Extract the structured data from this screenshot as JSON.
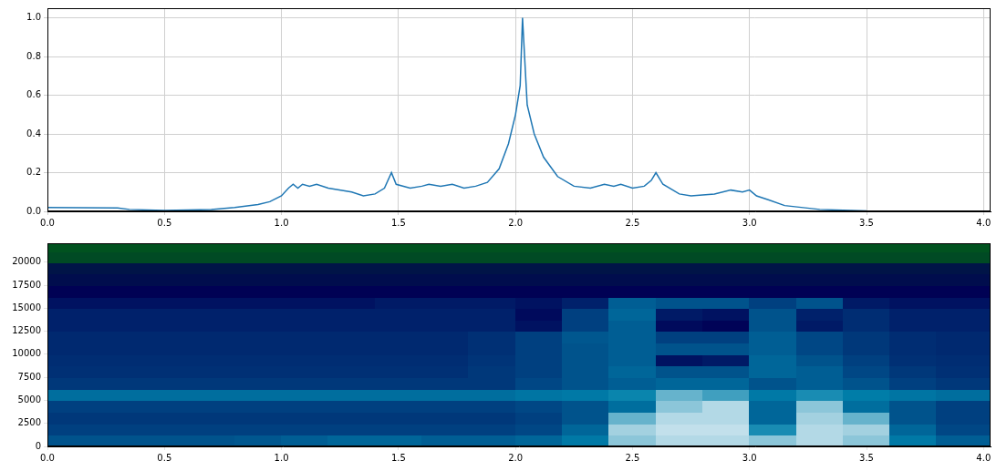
{
  "chart_data": [
    {
      "type": "line",
      "x": [
        0.0,
        0.3,
        0.35,
        0.5,
        0.7,
        0.8,
        0.9,
        0.95,
        1.0,
        1.03,
        1.05,
        1.07,
        1.09,
        1.12,
        1.15,
        1.2,
        1.3,
        1.35,
        1.4,
        1.44,
        1.47,
        1.49,
        1.55,
        1.6,
        1.63,
        1.68,
        1.73,
        1.78,
        1.83,
        1.88,
        1.93,
        1.97,
        2.0,
        2.02,
        2.03,
        2.05,
        2.08,
        2.12,
        2.18,
        2.25,
        2.32,
        2.38,
        2.42,
        2.45,
        2.5,
        2.55,
        2.58,
        2.6,
        2.63,
        2.7,
        2.75,
        2.85,
        2.92,
        2.97,
        3.0,
        3.03,
        3.08,
        3.15,
        3.3,
        3.5,
        4.0
      ],
      "values": [
        0.02,
        0.018,
        0.01,
        0.005,
        0.01,
        0.02,
        0.035,
        0.05,
        0.08,
        0.12,
        0.14,
        0.12,
        0.14,
        0.13,
        0.14,
        0.12,
        0.1,
        0.08,
        0.09,
        0.12,
        0.2,
        0.14,
        0.12,
        0.13,
        0.14,
        0.13,
        0.14,
        0.12,
        0.13,
        0.15,
        0.22,
        0.35,
        0.5,
        0.65,
        1.0,
        0.55,
        0.4,
        0.28,
        0.18,
        0.13,
        0.12,
        0.14,
        0.13,
        0.14,
        0.12,
        0.13,
        0.16,
        0.2,
        0.14,
        0.09,
        0.08,
        0.09,
        0.11,
        0.1,
        0.11,
        0.08,
        0.06,
        0.03,
        0.01,
        0.002,
        0.0
      ],
      "color": "#1f77b4",
      "xlim": [
        0,
        4.03
      ],
      "xticks": [
        {
          "value": 0,
          "label": "0.0"
        },
        {
          "value": 0.5,
          "label": "0.5"
        },
        {
          "value": 1,
          "label": "1.0"
        },
        {
          "value": 1.5,
          "label": "1.5"
        },
        {
          "value": 2,
          "label": "2.0"
        },
        {
          "value": 2.5,
          "label": "2.5"
        },
        {
          "value": 3,
          "label": "3.0"
        },
        {
          "value": 3.5,
          "label": "3.5"
        },
        {
          "value": 4,
          "label": "4.0"
        }
      ],
      "ylim": [
        0,
        1.05
      ],
      "yticks": [
        {
          "value": 0,
          "label": "0.0"
        },
        {
          "value": 0.2,
          "label": "0.2"
        },
        {
          "value": 0.4,
          "label": "0.4"
        },
        {
          "value": 0.6,
          "label": "0.6"
        },
        {
          "value": 0.8,
          "label": "0.8"
        },
        {
          "value": 1,
          "label": "1.0"
        }
      ],
      "grid": true
    },
    {
      "type": "heatmap",
      "color": "ocean",
      "x_edges": [
        0,
        0.2,
        0.4,
        0.6,
        0.8,
        1.0,
        1.2,
        1.4,
        1.6,
        1.8,
        2.0,
        2.2,
        2.4,
        2.6,
        2.8,
        3.0,
        3.2,
        3.4,
        3.6,
        3.8,
        4.03
      ],
      "y_edges": [
        0,
        1250,
        2500,
        3750,
        5000,
        6250,
        7500,
        8750,
        10000,
        11250,
        12500,
        13750,
        15000,
        16250,
        17500,
        18750,
        20000,
        21250,
        22050
      ],
      "cells": [
        [
          0.55,
          0.55,
          0.55,
          0.55,
          0.56,
          0.58,
          0.6,
          0.6,
          0.58,
          0.58,
          0.6,
          0.65,
          0.85,
          0.9,
          0.9,
          0.85,
          0.9,
          0.85,
          0.65,
          0.58
        ],
        [
          0.5,
          0.5,
          0.5,
          0.5,
          0.5,
          0.5,
          0.5,
          0.5,
          0.5,
          0.5,
          0.52,
          0.6,
          0.88,
          0.92,
          0.92,
          0.7,
          0.9,
          0.88,
          0.6,
          0.52
        ],
        [
          0.48,
          0.48,
          0.48,
          0.48,
          0.48,
          0.48,
          0.48,
          0.48,
          0.48,
          0.48,
          0.5,
          0.55,
          0.8,
          0.9,
          0.9,
          0.6,
          0.88,
          0.8,
          0.55,
          0.5
        ],
        [
          0.5,
          0.5,
          0.5,
          0.5,
          0.5,
          0.5,
          0.5,
          0.5,
          0.5,
          0.5,
          0.52,
          0.55,
          0.62,
          0.85,
          0.9,
          0.6,
          0.85,
          0.62,
          0.55,
          0.5
        ],
        [
          0.62,
          0.62,
          0.62,
          0.62,
          0.62,
          0.62,
          0.62,
          0.62,
          0.62,
          0.62,
          0.64,
          0.65,
          0.68,
          0.8,
          0.75,
          0.65,
          0.7,
          0.66,
          0.64,
          0.62
        ],
        [
          0.48,
          0.48,
          0.48,
          0.48,
          0.48,
          0.48,
          0.48,
          0.48,
          0.48,
          0.48,
          0.52,
          0.55,
          0.58,
          0.6,
          0.6,
          0.55,
          0.58,
          0.55,
          0.5,
          0.48
        ],
        [
          0.46,
          0.46,
          0.46,
          0.46,
          0.46,
          0.46,
          0.46,
          0.46,
          0.46,
          0.48,
          0.5,
          0.55,
          0.6,
          0.55,
          0.55,
          0.6,
          0.58,
          0.52,
          0.48,
          0.46
        ],
        [
          0.45,
          0.45,
          0.45,
          0.45,
          0.45,
          0.45,
          0.45,
          0.45,
          0.45,
          0.47,
          0.5,
          0.55,
          0.58,
          0.38,
          0.4,
          0.6,
          0.55,
          0.5,
          0.46,
          0.45
        ],
        [
          0.44,
          0.44,
          0.44,
          0.44,
          0.44,
          0.44,
          0.44,
          0.44,
          0.44,
          0.46,
          0.5,
          0.55,
          0.58,
          0.55,
          0.55,
          0.58,
          0.52,
          0.48,
          0.45,
          0.44
        ],
        [
          0.44,
          0.44,
          0.44,
          0.44,
          0.44,
          0.44,
          0.44,
          0.44,
          0.44,
          0.46,
          0.5,
          0.56,
          0.58,
          0.5,
          0.5,
          0.58,
          0.52,
          0.48,
          0.45,
          0.44
        ],
        [
          0.42,
          0.42,
          0.42,
          0.42,
          0.42,
          0.42,
          0.42,
          0.42,
          0.42,
          0.42,
          0.38,
          0.5,
          0.58,
          0.36,
          0.34,
          0.55,
          0.4,
          0.45,
          0.42,
          0.42
        ],
        [
          0.42,
          0.42,
          0.42,
          0.42,
          0.42,
          0.42,
          0.42,
          0.42,
          0.42,
          0.42,
          0.36,
          0.5,
          0.6,
          0.4,
          0.38,
          0.55,
          0.42,
          0.45,
          0.42,
          0.42
        ],
        [
          0.38,
          0.38,
          0.38,
          0.38,
          0.38,
          0.38,
          0.38,
          0.4,
          0.4,
          0.4,
          0.38,
          0.42,
          0.58,
          0.55,
          0.55,
          0.5,
          0.55,
          0.4,
          0.38,
          0.38
        ],
        [
          0.33,
          0.33,
          0.33,
          0.33,
          0.33,
          0.33,
          0.33,
          0.33,
          0.33,
          0.33,
          0.33,
          0.33,
          0.33,
          0.33,
          0.33,
          0.33,
          0.33,
          0.33,
          0.33,
          0.33
        ],
        [
          0.3,
          0.3,
          0.3,
          0.3,
          0.3,
          0.3,
          0.3,
          0.3,
          0.3,
          0.3,
          0.3,
          0.3,
          0.3,
          0.3,
          0.3,
          0.3,
          0.3,
          0.3,
          0.3,
          0.3
        ],
        [
          0.28,
          0.28,
          0.28,
          0.28,
          0.28,
          0.28,
          0.28,
          0.28,
          0.28,
          0.28,
          0.28,
          0.28,
          0.28,
          0.28,
          0.28,
          0.28,
          0.28,
          0.28,
          0.28,
          0.28
        ],
        [
          0.14,
          0.14,
          0.14,
          0.14,
          0.14,
          0.14,
          0.14,
          0.14,
          0.14,
          0.14,
          0.14,
          0.14,
          0.14,
          0.14,
          0.14,
          0.14,
          0.14,
          0.14,
          0.14,
          0.14
        ],
        [
          0.12,
          0.12,
          0.12,
          0.12,
          0.12,
          0.12,
          0.12,
          0.12,
          0.12,
          0.12,
          0.12,
          0.12,
          0.12,
          0.12,
          0.12,
          0.12,
          0.12,
          0.12,
          0.12,
          0.12
        ]
      ],
      "zlim": [
        0,
        1
      ],
      "xlim": [
        0,
        4.03
      ],
      "xticks": [
        {
          "value": 0,
          "label": "0.0"
        },
        {
          "value": 0.5,
          "label": "0.5"
        },
        {
          "value": 1,
          "label": "1.0"
        },
        {
          "value": 1.5,
          "label": "1.5"
        },
        {
          "value": 2,
          "label": "2.0"
        },
        {
          "value": 2.5,
          "label": "2.5"
        },
        {
          "value": 3,
          "label": "3.0"
        },
        {
          "value": 3.5,
          "label": "3.5"
        },
        {
          "value": 4,
          "label": "4.0"
        }
      ],
      "ylim": [
        0,
        22050
      ],
      "yticks": [
        0,
        2500,
        5000,
        7500,
        10000,
        12500,
        15000,
        17500,
        20000
      ],
      "grid": true
    }
  ]
}
